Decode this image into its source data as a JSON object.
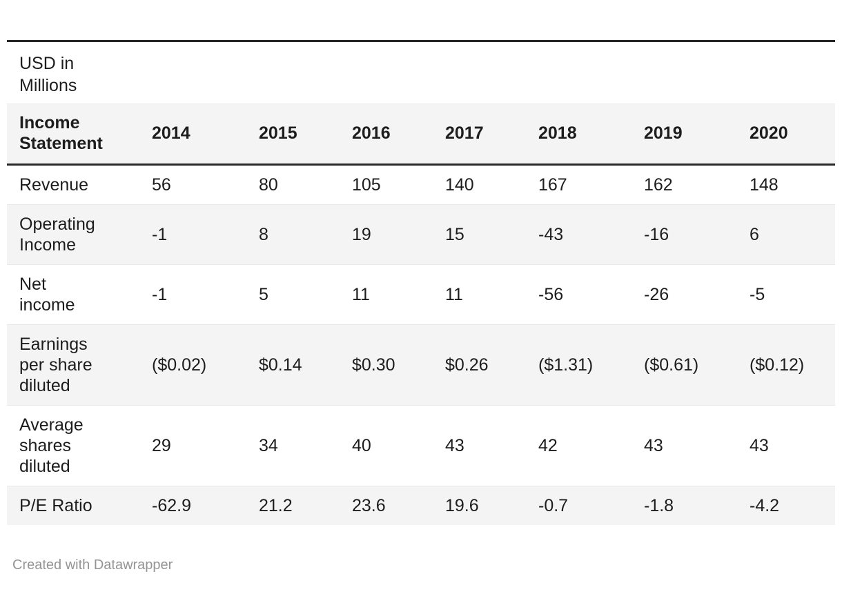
{
  "table": {
    "units_note": "USD in\nMillions",
    "header": {
      "label": "Income\nStatement",
      "years": [
        "2014",
        "2015",
        "2016",
        "2017",
        "2018",
        "2019",
        "2020"
      ]
    },
    "rows": [
      {
        "label": "Revenue",
        "values": [
          "56",
          "80",
          "105",
          "140",
          "167",
          "162",
          "148"
        ]
      },
      {
        "label": "Operating\nIncome",
        "values": [
          "-1",
          "8",
          "19",
          "15",
          "-43",
          "-16",
          "6"
        ]
      },
      {
        "label": "Net\nincome",
        "values": [
          "-1",
          "5",
          "11",
          "11",
          "-56",
          "-26",
          "-5"
        ]
      },
      {
        "label": "Earnings\nper share\ndiluted",
        "values": [
          "($0.02)",
          "$0.14",
          "$0.30",
          "$0.26",
          "($1.31)",
          "($0.61)",
          "($0.12)"
        ]
      },
      {
        "label": "Average\nshares\ndiluted",
        "values": [
          "29",
          "34",
          "40",
          "43",
          "42",
          "43",
          "43"
        ]
      },
      {
        "label": "P/E Ratio",
        "values": [
          "-62.9",
          "21.2",
          "23.6",
          "19.6",
          "-0.7",
          "-1.8",
          "-4.2"
        ]
      }
    ]
  },
  "footer": {
    "attribution": "Created with Datawrapper"
  },
  "colors": {
    "heavy_rule": "#262626",
    "row_stripe": "#f4f4f4",
    "row_divider": "#e8e8e8",
    "text": "#1d1d1d",
    "footer_text": "#949494"
  },
  "chart_data": {
    "type": "table",
    "title": "USD in Millions",
    "columns": [
      "Income Statement",
      "2014",
      "2015",
      "2016",
      "2017",
      "2018",
      "2019",
      "2020"
    ],
    "rows": [
      {
        "label": "Revenue",
        "values": [
          56,
          80,
          105,
          140,
          167,
          162,
          148
        ]
      },
      {
        "label": "Operating Income",
        "values": [
          -1,
          8,
          19,
          15,
          -43,
          -16,
          6
        ]
      },
      {
        "label": "Net income",
        "values": [
          -1,
          5,
          11,
          11,
          -56,
          -26,
          -5
        ]
      },
      {
        "label": "Earnings per share diluted",
        "values": [
          -0.02,
          0.14,
          0.3,
          0.26,
          -1.31,
          -0.61,
          -0.12
        ]
      },
      {
        "label": "Average shares diluted",
        "values": [
          29,
          34,
          40,
          43,
          42,
          43,
          43
        ]
      },
      {
        "label": "P/E Ratio",
        "values": [
          -62.9,
          21.2,
          23.6,
          19.6,
          -0.7,
          -1.8,
          -4.2
        ]
      }
    ],
    "notes": "Striped table; EPS row shown as formatted currency with parentheses for negatives"
  }
}
